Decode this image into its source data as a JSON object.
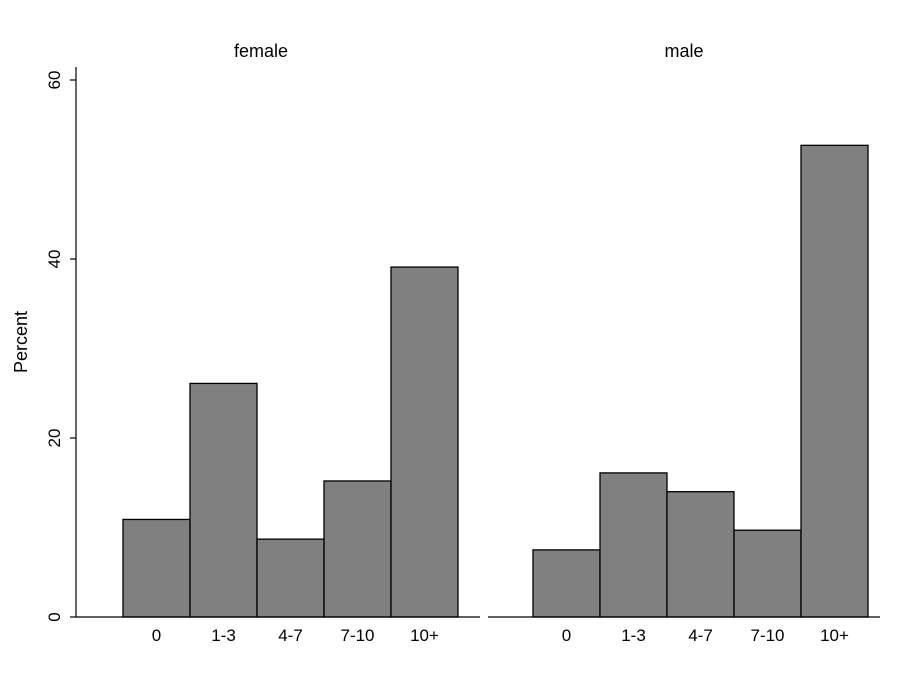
{
  "chart_data": {
    "type": "bar",
    "ylabel": "Percent",
    "ylim": [
      0,
      60
    ],
    "yticks": [
      0,
      20,
      40,
      60
    ],
    "categories": [
      "0",
      "1-3",
      "4-7",
      "7-10",
      "10+"
    ],
    "panels": [
      {
        "title": "female",
        "values": [
          10.9,
          26.1,
          8.7,
          15.2,
          39.1
        ]
      },
      {
        "title": "male",
        "values": [
          7.5,
          16.1,
          14.0,
          9.7,
          52.7
        ]
      }
    ],
    "bar_color": "#808080",
    "grid": false,
    "legend": "none"
  }
}
